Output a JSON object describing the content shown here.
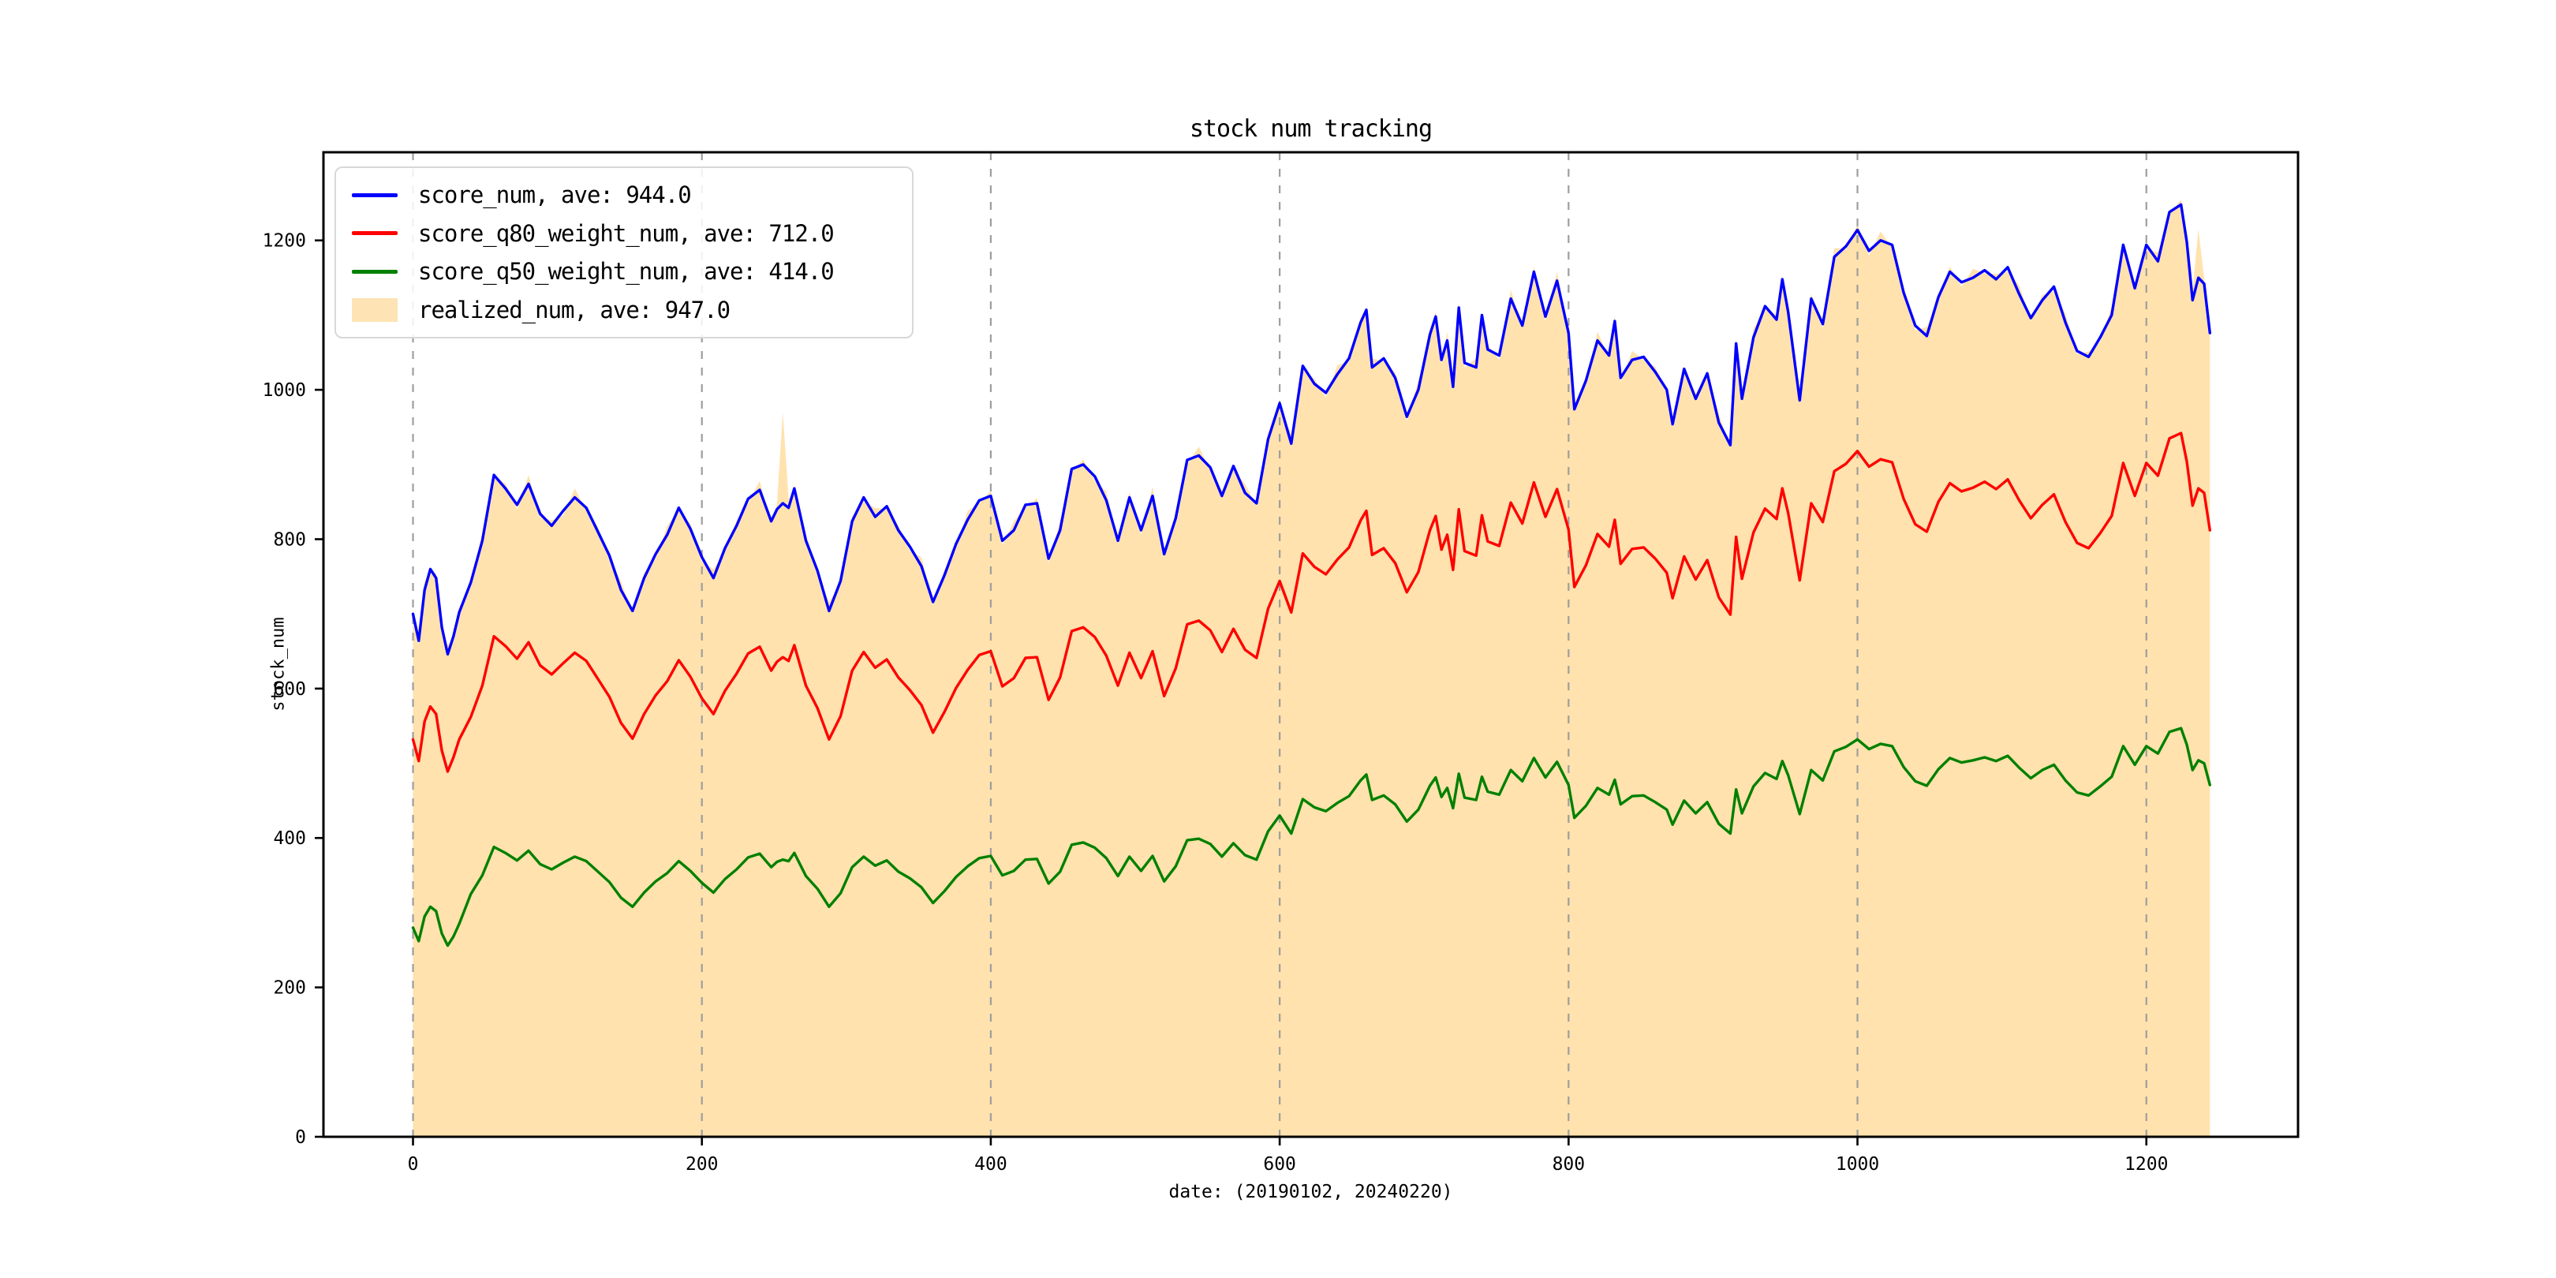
{
  "chart_data": {
    "type": "line",
    "title": "stock num tracking",
    "xlabel": "date: (20190102, 20240220)",
    "ylabel": "stock_num",
    "xlim": [
      -62,
      1305
    ],
    "ylim": [
      0,
      1318
    ],
    "xticks": [
      0,
      200,
      400,
      600,
      800,
      1000,
      1200
    ],
    "yticks": [
      0,
      200,
      400,
      600,
      800,
      1000,
      1200
    ],
    "grid": "vertical-dashed-only",
    "grid_color": "#9e9e9e",
    "legend_position": "upper-left",
    "x": [
      0,
      4,
      8,
      12,
      16,
      20,
      24,
      28,
      32,
      40,
      48,
      56,
      64,
      72,
      80,
      88,
      96,
      104,
      112,
      120,
      128,
      136,
      144,
      152,
      160,
      168,
      176,
      184,
      192,
      200,
      208,
      216,
      224,
      232,
      240,
      248,
      252,
      256,
      260,
      264,
      272,
      280,
      288,
      296,
      304,
      312,
      320,
      328,
      336,
      344,
      352,
      360,
      368,
      376,
      384,
      392,
      400,
      408,
      416,
      424,
      432,
      440,
      448,
      456,
      464,
      472,
      480,
      488,
      496,
      504,
      512,
      520,
      528,
      536,
      544,
      552,
      560,
      568,
      576,
      584,
      592,
      600,
      608,
      616,
      624,
      632,
      640,
      648,
      656,
      660,
      664,
      672,
      680,
      688,
      696,
      704,
      708,
      712,
      716,
      720,
      724,
      728,
      736,
      740,
      744,
      752,
      760,
      768,
      776,
      784,
      792,
      800,
      804,
      812,
      820,
      828,
      832,
      836,
      844,
      852,
      860,
      868,
      872,
      880,
      888,
      896,
      904,
      912,
      916,
      920,
      928,
      936,
      944,
      948,
      952,
      960,
      968,
      976,
      984,
      992,
      1000,
      1008,
      1016,
      1024,
      1032,
      1040,
      1048,
      1056,
      1064,
      1072,
      1080,
      1088,
      1096,
      1104,
      1112,
      1120,
      1128,
      1136,
      1144,
      1152,
      1160,
      1168,
      1176,
      1184,
      1192,
      1200,
      1208,
      1216,
      1224,
      1228,
      1232,
      1236,
      1240,
      1244
    ],
    "series": [
      {
        "name": "score_num",
        "ave": 944.0,
        "color": "#0000ff",
        "type": "line",
        "values": [
          700,
          664,
          732,
          760,
          748,
          682,
          646,
          670,
          702,
          742,
          798,
          886,
          868,
          846,
          874,
          834,
          818,
          838,
          856,
          842,
          810,
          778,
          732,
          704,
          748,
          780,
          806,
          842,
          814,
          776,
          748,
          788,
          818,
          854,
          866,
          824,
          840,
          848,
          842,
          868,
          798,
          758,
          704,
          744,
          824,
          856,
          830,
          844,
          812,
          790,
          764,
          716,
          752,
          794,
          826,
          852,
          858,
          798,
          812,
          846,
          848,
          774,
          812,
          894,
          900,
          884,
          852,
          798,
          856,
          812,
          858,
          780,
          828,
          906,
          912,
          896,
          858,
          898,
          862,
          848,
          934,
          982,
          928,
          1032,
          1008,
          996,
          1021,
          1042,
          1090,
          1107,
          1030,
          1042,
          1016,
          964,
          1000,
          1074,
          1098,
          1040,
          1066,
          1004,
          1110,
          1036,
          1030,
          1100,
          1054,
          1046,
          1122,
          1086,
          1158,
          1098,
          1146,
          1076,
          974,
          1012,
          1066,
          1046,
          1092,
          1016,
          1040,
          1044,
          1024,
          1000,
          954,
          1028,
          988,
          1022,
          956,
          926,
          1062,
          988,
          1070,
          1112,
          1094,
          1148,
          1104,
          986,
          1122,
          1088,
          1178,
          1192,
          1214,
          1186,
          1200,
          1194,
          1130,
          1086,
          1072,
          1124,
          1158,
          1144,
          1150,
          1160,
          1148,
          1164,
          1128,
          1096,
          1120,
          1138,
          1090,
          1052,
          1044,
          1070,
          1100,
          1194,
          1136,
          1194,
          1172,
          1238,
          1248,
          1198,
          1120,
          1150,
          1142,
          1076
        ]
      },
      {
        "name": "score_q80_weight_num",
        "ave": 712.0,
        "color": "#ff0000",
        "type": "line",
        "values": [
          532,
          503,
          556,
          576,
          566,
          517,
          489,
          508,
          532,
          562,
          604,
          670,
          657,
          640,
          662,
          631,
          619,
          634,
          648,
          637,
          613,
          589,
          554,
          533,
          566,
          591,
          610,
          638,
          616,
          587,
          566,
          597,
          620,
          647,
          656,
          624,
          636,
          642,
          637,
          658,
          604,
          574,
          532,
          563,
          624,
          649,
          628,
          639,
          615,
          598,
          578,
          541,
          569,
          601,
          625,
          645,
          650,
          603,
          614,
          641,
          642,
          585,
          615,
          677,
          682,
          669,
          644,
          604,
          648,
          614,
          650,
          590,
          627,
          686,
          691,
          678,
          649,
          680,
          652,
          641,
          707,
          744,
          702,
          781,
          763,
          753,
          773,
          789,
          825,
          838,
          779,
          788,
          768,
          729,
          756,
          812,
          831,
          786,
          806,
          759,
          840,
          784,
          778,
          832,
          797,
          791,
          849,
          821,
          876,
          830,
          867,
          813,
          736,
          765,
          807,
          790,
          826,
          767,
          787,
          789,
          774,
          755,
          721,
          777,
          746,
          772,
          722,
          699,
          803,
          747,
          809,
          841,
          827,
          868,
          835,
          745,
          848,
          823,
          891,
          901,
          918,
          897,
          907,
          903,
          854,
          820,
          810,
          850,
          875,
          864,
          869,
          877,
          867,
          880,
          852,
          828,
          846,
          860,
          823,
          795,
          788,
          808,
          831,
          902,
          858,
          902,
          885,
          935,
          942,
          904,
          845,
          868,
          862,
          812
        ]
      },
      {
        "name": "score_q50_weight_num",
        "ave": 414.0,
        "color": "#008000",
        "type": "line",
        "values": [
          280,
          262,
          295,
          308,
          302,
          272,
          256,
          268,
          285,
          325,
          350,
          388,
          380,
          370,
          383,
          365,
          358,
          367,
          375,
          369,
          355,
          341,
          320,
          308,
          327,
          342,
          353,
          369,
          356,
          340,
          327,
          345,
          358,
          374,
          379,
          361,
          368,
          371,
          369,
          380,
          349,
          332,
          308,
          326,
          361,
          375,
          363,
          370,
          355,
          346,
          334,
          313,
          329,
          348,
          362,
          373,
          376,
          350,
          356,
          371,
          372,
          339,
          355,
          391,
          394,
          387,
          373,
          349,
          375,
          356,
          376,
          342,
          362,
          397,
          399,
          392,
          375,
          393,
          377,
          371,
          409,
          430,
          406,
          452,
          441,
          436,
          447,
          456,
          477,
          485,
          451,
          457,
          445,
          422,
          438,
          470,
          481,
          455,
          467,
          440,
          486,
          454,
          451,
          482,
          462,
          458,
          491,
          476,
          507,
          481,
          502,
          471,
          427,
          443,
          467,
          458,
          478,
          445,
          456,
          457,
          448,
          438,
          418,
          450,
          433,
          448,
          419,
          406,
          465,
          433,
          469,
          487,
          479,
          503,
          484,
          432,
          491,
          477,
          516,
          522,
          532,
          519,
          526,
          523,
          495,
          476,
          470,
          492,
          507,
          501,
          504,
          508,
          503,
          510,
          494,
          480,
          491,
          498,
          477,
          461,
          457,
          469,
          482,
          523,
          498,
          523,
          513,
          542,
          547,
          525,
          491,
          504,
          500,
          471
        ]
      },
      {
        "name": "realized_num",
        "ave": 947.0,
        "color": "#ffa500",
        "type": "area",
        "fill_opacity": 0.32,
        "values": [
          707,
          658,
          744,
          756,
          755,
          676,
          658,
          666,
          709,
          736,
          810,
          882,
          875,
          840,
          886,
          830,
          825,
          832,
          868,
          838,
          817,
          772,
          744,
          700,
          755,
          774,
          818,
          838,
          821,
          770,
          760,
          784,
          825,
          848,
          878,
          820,
          847,
          970,
          854,
          864,
          805,
          752,
          716,
          740,
          831,
          850,
          842,
          840,
          819,
          784,
          776,
          712,
          759,
          788,
          838,
          848,
          865,
          792,
          824,
          842,
          855,
          768,
          824,
          890,
          907,
          878,
          864,
          794,
          863,
          806,
          870,
          776,
          835,
          900,
          924,
          892,
          865,
          892,
          874,
          844,
          941,
          976,
          940,
          1028,
          1015,
          990,
          1033,
          1038,
          1097,
          1101,
          1042,
          1038,
          1023,
          958,
          1012,
          1070,
          1105,
          1034,
          1078,
          1000,
          1117,
          1030,
          1042,
          1096,
          1061,
          1040,
          1134,
          1082,
          1165,
          1092,
          1158,
          1072,
          981,
          1006,
          1078,
          1042,
          1099,
          1010,
          1052,
          1040,
          1031,
          994,
          966,
          1024,
          995,
          1016,
          968,
          922,
          1069,
          982,
          1082,
          1108,
          1101,
          1142,
          1116,
          982,
          1129,
          1082,
          1190,
          1188,
          1221,
          1180,
          1212,
          1190,
          1137,
          1080,
          1084,
          1120,
          1165,
          1138,
          1162,
          1156,
          1155,
          1158,
          1140,
          1092,
          1127,
          1132,
          1102,
          1048,
          1051,
          1064,
          1112,
          1190,
          1143,
          1188,
          1184,
          1234,
          1255,
          1192,
          1132,
          1215,
          1149,
          1070
        ]
      }
    ],
    "legend": [
      {
        "label": "score_num, ave: 944.0",
        "swatch": "line",
        "color": "#0000ff"
      },
      {
        "label": "score_q80_weight_num, ave: 712.0",
        "swatch": "line",
        "color": "#ff0000"
      },
      {
        "label": "score_q50_weight_num, ave: 414.0",
        "swatch": "line",
        "color": "#008000"
      },
      {
        "label": "realized_num, ave: 947.0",
        "swatch": "patch",
        "color": "#fee3b4"
      }
    ]
  }
}
